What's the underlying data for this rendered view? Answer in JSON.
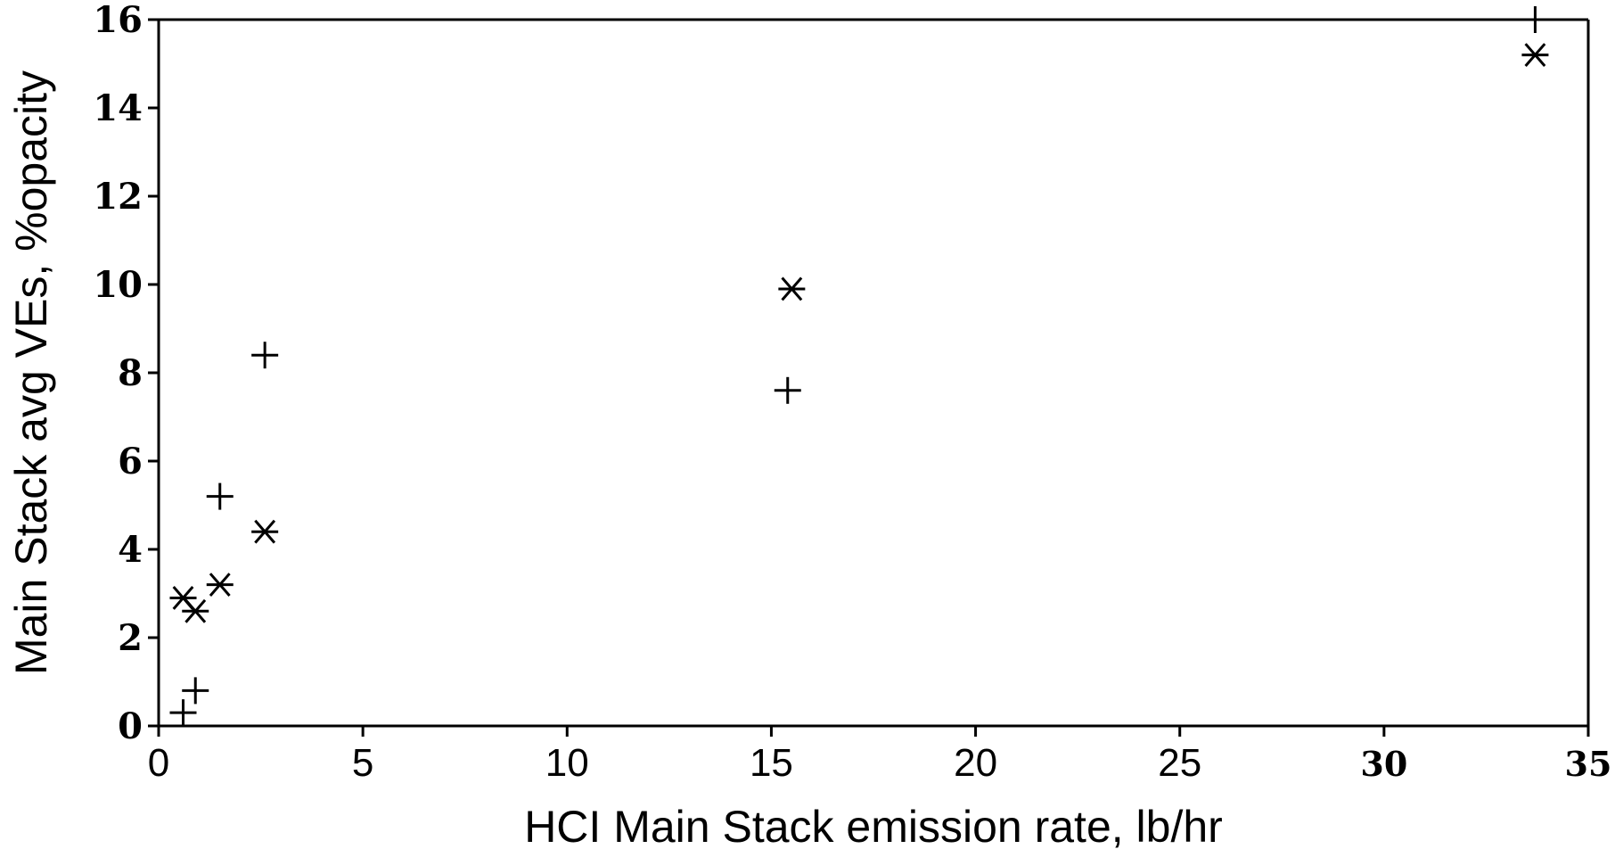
{
  "chart_data": {
    "type": "scatter",
    "title": "",
    "xlabel": "HCI Main Stack emission rate, lb/hr",
    "ylabel": "Main Stack avg VEs, %opacity",
    "xlim": [
      0,
      35
    ],
    "ylim": [
      0,
      16
    ],
    "x_ticks": [
      "0",
      "5",
      "10",
      "15",
      "20",
      "25",
      "30",
      "35"
    ],
    "y_ticks": [
      "0",
      "2",
      "4",
      "6",
      "8",
      "10",
      "12",
      "14",
      "16"
    ],
    "grid": false,
    "legend": "none",
    "series": [
      {
        "marker": "plus",
        "points": [
          {
            "x": 0.6,
            "y": 0.3
          },
          {
            "x": 0.9,
            "y": 0.8
          },
          {
            "x": 1.5,
            "y": 5.2
          },
          {
            "x": 2.6,
            "y": 8.4
          },
          {
            "x": 15.4,
            "y": 7.6
          },
          {
            "x": 33.7,
            "y": 16.0
          }
        ]
      },
      {
        "marker": "asterisk",
        "points": [
          {
            "x": 0.6,
            "y": 2.9
          },
          {
            "x": 0.9,
            "y": 2.6
          },
          {
            "x": 1.5,
            "y": 3.2
          },
          {
            "x": 2.6,
            "y": 4.4
          },
          {
            "x": 15.5,
            "y": 9.9
          },
          {
            "x": 33.7,
            "y": 15.2
          }
        ]
      }
    ]
  }
}
